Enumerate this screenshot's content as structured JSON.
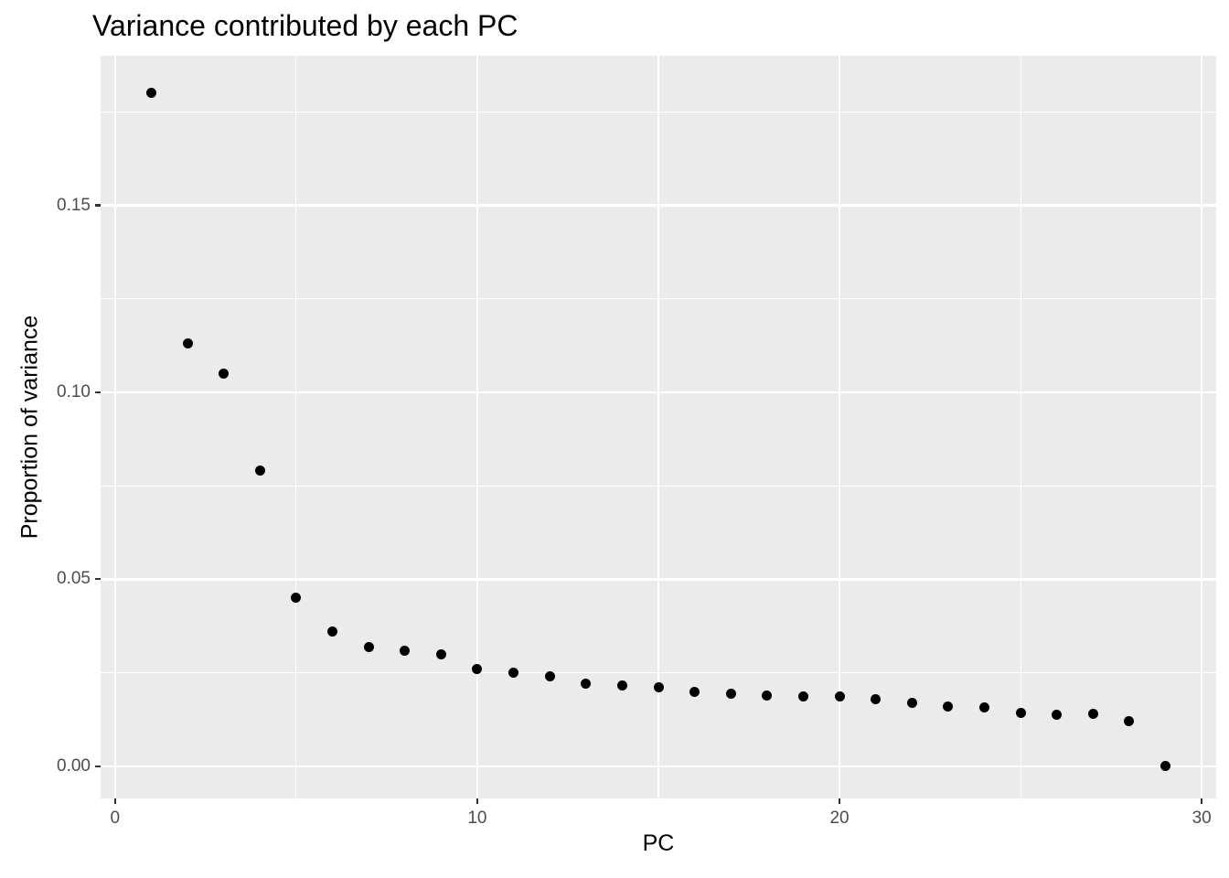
{
  "chart_data": {
    "type": "scatter",
    "title": "Variance contributed by each PC",
    "xlabel": "PC",
    "ylabel": "Proportion of variance",
    "x": [
      1,
      2,
      3,
      4,
      5,
      6,
      7,
      8,
      9,
      10,
      11,
      12,
      13,
      14,
      15,
      16,
      17,
      18,
      19,
      20,
      21,
      22,
      23,
      24,
      25,
      26,
      27,
      28,
      29
    ],
    "y": [
      0.18,
      0.113,
      0.105,
      0.079,
      0.045,
      0.036,
      0.032,
      0.031,
      0.03,
      0.026,
      0.025,
      0.024,
      0.022,
      0.0215,
      0.021,
      0.02,
      0.0195,
      0.019,
      0.0186,
      0.0187,
      0.018,
      0.017,
      0.016,
      0.0157,
      0.0143,
      0.0139,
      0.014,
      0.012,
      0.0002
    ],
    "xlim": [
      -0.4,
      30.4
    ],
    "ylim": [
      -0.0086,
      0.19
    ],
    "x_ticks": {
      "values": [
        0,
        10,
        20,
        30
      ],
      "labels": [
        "0",
        "10",
        "20",
        "30"
      ],
      "minor": [
        5,
        15,
        25
      ]
    },
    "y_ticks": {
      "values": [
        0,
        0.05,
        0.1,
        0.15
      ],
      "labels": [
        "0.00",
        "0.05",
        "0.10",
        "0.15"
      ],
      "minor": [
        0.025,
        0.075,
        0.125,
        0.175
      ]
    },
    "grid": "major and minor, white lines on grey panel",
    "legend": "none"
  },
  "style": {
    "page_bg": "#FFFFFF",
    "panel_bg": "#EBEBEB",
    "grid_color": "#FFFFFF",
    "point_color": "#000000",
    "tick_label_color": "#4D4D4D",
    "tick_mark_color": "#333333",
    "title_color": "#000000"
  }
}
